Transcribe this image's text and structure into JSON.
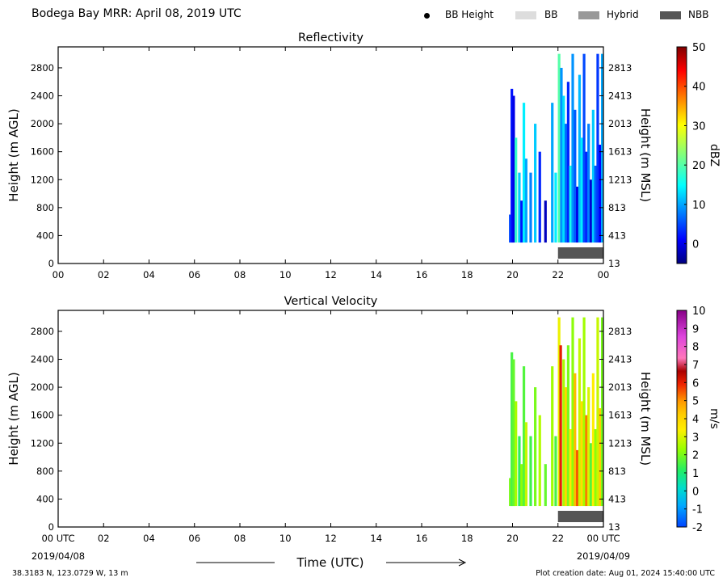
{
  "header": {
    "title": "Bodega Bay MRR:  April 08, 2019 UTC",
    "legend": [
      {
        "label": "BB Height",
        "symbol": "dot",
        "color": "#000000"
      },
      {
        "label": "BB",
        "symbol": "box",
        "color": "#dddddd"
      },
      {
        "label": "Hybrid",
        "symbol": "box",
        "color": "#999999"
      },
      {
        "label": "NBB",
        "symbol": "box",
        "color": "#555555"
      }
    ]
  },
  "footer": {
    "location": "38.3183 N, 123.0729 W, 13 m",
    "created": "Plot creation date: Aug 01, 2024 15:40:00 UTC"
  },
  "xaxis": {
    "label": "Time (UTC)",
    "ticks_top": [
      "00",
      "02",
      "04",
      "06",
      "08",
      "10",
      "12",
      "14",
      "16",
      "18",
      "20",
      "22",
      "00"
    ],
    "ticks_bottom": [
      "00 UTC",
      "02",
      "04",
      "06",
      "08",
      "10",
      "12",
      "14",
      "16",
      "18",
      "20",
      "22",
      "00 UTC"
    ],
    "date_start": "2019/04/08",
    "date_end": "2019/04/09"
  },
  "chart_data": [
    {
      "type": "heatmap",
      "title": "Reflectivity",
      "ylabel": "Height (m AGL)",
      "ylabel_right": "Height (m MSL)",
      "yticks": [
        0,
        400,
        800,
        1200,
        1600,
        2000,
        2400,
        2800
      ],
      "yticks_right": [
        "13",
        "413",
        "813",
        "1213",
        "1613",
        "2013",
        "2413",
        "2813"
      ],
      "xlim_hours": [
        0,
        24
      ],
      "ylim": [
        0,
        3100
      ],
      "colorbar": {
        "label": "dBZ",
        "range": [
          -5,
          50
        ],
        "ticks": [
          0,
          10,
          20,
          30,
          40,
          50
        ],
        "colormap": "jet"
      },
      "bright_band": [
        {
          "start_hour": 22.0,
          "end_hour": 24.0,
          "class": "NBB"
        }
      ],
      "columns": [
        {
          "t": 19.9,
          "bottom": 300,
          "top": 700,
          "v": 5
        },
        {
          "t": 19.97,
          "bottom": 300,
          "top": 2500,
          "v": 2
        },
        {
          "t": 20.05,
          "bottom": 300,
          "top": 2400,
          "v": 0
        },
        {
          "t": 20.15,
          "bottom": 300,
          "top": 1800,
          "v": 18
        },
        {
          "t": 20.3,
          "bottom": 300,
          "top": 1300,
          "v": 12
        },
        {
          "t": 20.4,
          "bottom": 300,
          "top": 900,
          "v": 2
        },
        {
          "t": 20.5,
          "bottom": 300,
          "top": 2300,
          "v": 14
        },
        {
          "t": 20.6,
          "bottom": 300,
          "top": 1500,
          "v": 10
        },
        {
          "t": 20.8,
          "bottom": 300,
          "top": 1300,
          "v": 8
        },
        {
          "t": 21.0,
          "bottom": 300,
          "top": 2000,
          "v": 12
        },
        {
          "t": 21.2,
          "bottom": 300,
          "top": 1600,
          "v": 3
        },
        {
          "t": 21.45,
          "bottom": 300,
          "top": 900,
          "v": -2
        },
        {
          "t": 21.75,
          "bottom": 300,
          "top": 2300,
          "v": 10
        },
        {
          "t": 21.9,
          "bottom": 300,
          "top": 1300,
          "v": 14
        },
        {
          "t": 22.05,
          "bottom": 300,
          "top": 3000,
          "v": 20
        },
        {
          "t": 22.15,
          "bottom": 300,
          "top": 2800,
          "v": 9
        },
        {
          "t": 22.25,
          "bottom": 300,
          "top": 2400,
          "v": 13
        },
        {
          "t": 22.35,
          "bottom": 300,
          "top": 2000,
          "v": 7
        },
        {
          "t": 22.45,
          "bottom": 300,
          "top": 2600,
          "v": 3
        },
        {
          "t": 22.55,
          "bottom": 300,
          "top": 1400,
          "v": 16
        },
        {
          "t": 22.65,
          "bottom": 300,
          "top": 3000,
          "v": 9
        },
        {
          "t": 22.75,
          "bottom": 300,
          "top": 2200,
          "v": 6
        },
        {
          "t": 22.85,
          "bottom": 300,
          "top": 1100,
          "v": 0
        },
        {
          "t": 22.95,
          "bottom": 300,
          "top": 2700,
          "v": 11
        },
        {
          "t": 23.05,
          "bottom": 300,
          "top": 1800,
          "v": 14
        },
        {
          "t": 23.15,
          "bottom": 300,
          "top": 3000,
          "v": 5
        },
        {
          "t": 23.25,
          "bottom": 300,
          "top": 1600,
          "v": 3
        },
        {
          "t": 23.35,
          "bottom": 300,
          "top": 2000,
          "v": 8
        },
        {
          "t": 23.45,
          "bottom": 300,
          "top": 1200,
          "v": -1
        },
        {
          "t": 23.55,
          "bottom": 300,
          "top": 2200,
          "v": 12
        },
        {
          "t": 23.65,
          "bottom": 300,
          "top": 1400,
          "v": 6
        },
        {
          "t": 23.75,
          "bottom": 300,
          "top": 3000,
          "v": 4
        },
        {
          "t": 23.85,
          "bottom": 300,
          "top": 1700,
          "v": 1
        },
        {
          "t": 23.95,
          "bottom": 300,
          "top": 3000,
          "v": 10
        }
      ]
    },
    {
      "type": "heatmap",
      "title": "Vertical Velocity",
      "ylabel": "Height (m AGL)",
      "ylabel_right": "Height (m MSL)",
      "yticks": [
        0,
        400,
        800,
        1200,
        1600,
        2000,
        2400,
        2800
      ],
      "yticks_right": [
        "13",
        "413",
        "813",
        "1213",
        "1613",
        "2013",
        "2413",
        "2813"
      ],
      "xlim_hours": [
        0,
        24
      ],
      "ylim": [
        0,
        3100
      ],
      "colorbar": {
        "label": "m/s",
        "range": [
          -2,
          10
        ],
        "ticks": [
          -2,
          -1,
          0,
          1,
          2,
          3,
          4,
          5,
          6,
          7,
          8,
          9,
          10
        ],
        "colormap": "velocity"
      },
      "bright_band": [
        {
          "start_hour": 22.0,
          "end_hour": 24.0,
          "class": "NBB"
        }
      ],
      "columns": [
        {
          "t": 19.9,
          "bottom": 300,
          "top": 700,
          "v": 2.0
        },
        {
          "t": 19.97,
          "bottom": 300,
          "top": 2500,
          "v": 1.5
        },
        {
          "t": 20.05,
          "bottom": 300,
          "top": 2400,
          "v": 1.8
        },
        {
          "t": 20.15,
          "bottom": 300,
          "top": 1800,
          "v": 2.5
        },
        {
          "t": 20.3,
          "bottom": 300,
          "top": 1300,
          "v": 1.2
        },
        {
          "t": 20.4,
          "bottom": 300,
          "top": 900,
          "v": 2.2
        },
        {
          "t": 20.5,
          "bottom": 300,
          "top": 2300,
          "v": 1.6
        },
        {
          "t": 20.6,
          "bottom": 300,
          "top": 1500,
          "v": 2.8
        },
        {
          "t": 20.8,
          "bottom": 300,
          "top": 1300,
          "v": 1.4
        },
        {
          "t": 21.0,
          "bottom": 300,
          "top": 2000,
          "v": 2.0
        },
        {
          "t": 21.2,
          "bottom": 300,
          "top": 1600,
          "v": 2.6
        },
        {
          "t": 21.45,
          "bottom": 300,
          "top": 900,
          "v": 1.8
        },
        {
          "t": 21.75,
          "bottom": 300,
          "top": 2300,
          "v": 2.4
        },
        {
          "t": 21.9,
          "bottom": 300,
          "top": 1300,
          "v": 1.5
        },
        {
          "t": 22.05,
          "bottom": 300,
          "top": 3000,
          "v": 3.2
        },
        {
          "t": 22.12,
          "bottom": 300,
          "top": 2600,
          "v": 6.0
        },
        {
          "t": 22.25,
          "bottom": 300,
          "top": 2400,
          "v": 2.5
        },
        {
          "t": 22.35,
          "bottom": 300,
          "top": 2000,
          "v": 4.0
        },
        {
          "t": 22.45,
          "bottom": 300,
          "top": 2600,
          "v": 2.0
        },
        {
          "t": 22.55,
          "bottom": 300,
          "top": 1400,
          "v": 3.5
        },
        {
          "t": 22.65,
          "bottom": 300,
          "top": 3000,
          "v": 2.2
        },
        {
          "t": 22.75,
          "bottom": 300,
          "top": 2200,
          "v": 4.5
        },
        {
          "t": 22.85,
          "bottom": 300,
          "top": 1100,
          "v": 5.5
        },
        {
          "t": 22.95,
          "bottom": 300,
          "top": 2700,
          "v": 2.8
        },
        {
          "t": 23.05,
          "bottom": 300,
          "top": 1800,
          "v": 3.8
        },
        {
          "t": 23.15,
          "bottom": 300,
          "top": 3000,
          "v": 2.4
        },
        {
          "t": 23.25,
          "bottom": 300,
          "top": 1600,
          "v": 5.2
        },
        {
          "t": 23.35,
          "bottom": 300,
          "top": 2000,
          "v": 3.0
        },
        {
          "t": 23.45,
          "bottom": 300,
          "top": 1200,
          "v": 1.6
        },
        {
          "t": 23.55,
          "bottom": 300,
          "top": 2200,
          "v": 3.4
        },
        {
          "t": 23.65,
          "bottom": 300,
          "top": 1400,
          "v": 2.2
        },
        {
          "t": 23.75,
          "bottom": 300,
          "top": 3000,
          "v": 2.8
        },
        {
          "t": 23.85,
          "bottom": 300,
          "top": 1700,
          "v": 4.2
        },
        {
          "t": 23.95,
          "bottom": 300,
          "top": 3000,
          "v": 2.0
        }
      ]
    }
  ]
}
